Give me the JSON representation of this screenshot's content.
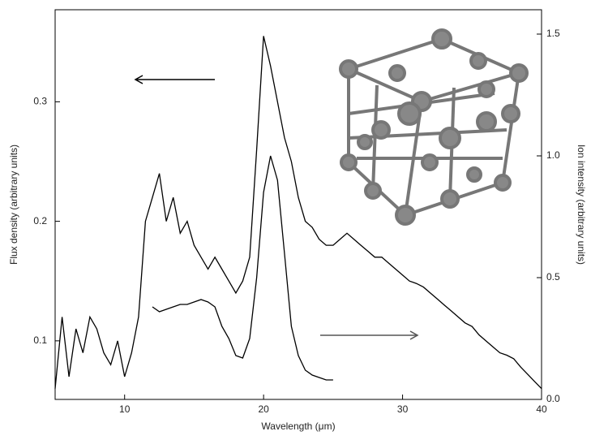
{
  "chart_data": {
    "type": "line",
    "xlabel": "Wavelength (μm)",
    "ylabel": "Flux density (arbitrary units)",
    "y2label": "Ion intensity (arbitrary units)",
    "xlim": [
      5,
      40
    ],
    "xticks": [
      10,
      20,
      30,
      40
    ],
    "ylim": [
      0.051,
      0.377
    ],
    "yticks": [
      0.1,
      0.2,
      0.3
    ],
    "y2lim": [
      0,
      1.6
    ],
    "y2ticks": [
      {
        "value": 0,
        "label": "0.0"
      },
      0.5,
      {
        "value": 1,
        "label": "1.0"
      },
      1.5
    ],
    "series": [
      {
        "color": "#000000",
        "x": [
          5,
          5.5,
          6,
          6.5,
          7,
          7.5,
          8,
          8.5,
          9,
          9.5,
          10,
          10.5,
          11,
          11.5,
          12,
          12.5,
          13,
          13.5,
          14,
          14.5,
          15,
          15.5,
          16,
          16.5,
          17,
          17.5,
          18,
          18.5,
          19,
          19.5,
          20,
          20.5,
          21,
          21.5,
          22,
          22.5,
          23,
          23.5,
          24,
          24.5,
          25,
          25.5,
          26,
          26.5,
          27,
          27.5,
          28,
          28.5,
          29,
          29.5,
          30,
          30.5,
          31,
          31.5,
          32,
          32.5,
          33,
          33.5,
          34,
          34.5,
          35,
          35.5,
          36,
          36.5,
          37,
          37.5,
          38,
          38.5,
          39,
          39.5,
          40
        ],
        "values": [
          0.06,
          0.12,
          0.07,
          0.11,
          0.09,
          0.12,
          0.11,
          0.09,
          0.08,
          0.1,
          0.07,
          0.09,
          0.12,
          0.2,
          0.22,
          0.24,
          0.2,
          0.22,
          0.19,
          0.2,
          0.18,
          0.17,
          0.16,
          0.17,
          0.16,
          0.15,
          0.14,
          0.15,
          0.17,
          0.26,
          0.355,
          0.33,
          0.3,
          0.27,
          0.25,
          0.22,
          0.2,
          0.195,
          0.185,
          0.18,
          0.18,
          0.185,
          0.19,
          0.185,
          0.18,
          0.175,
          0.17,
          0.17,
          0.165,
          0.16,
          0.155,
          0.15,
          0.148,
          0.145,
          0.14,
          0.135,
          0.13,
          0.125,
          0.12,
          0.115,
          0.112,
          0.105,
          0.1,
          0.095,
          0.09,
          0.088,
          0.085,
          0.078,
          0.072,
          0.066,
          0.06
        ]
      },
      {
        "color": "#000000",
        "axis": "y2",
        "x": [
          12,
          12.5,
          13,
          13.5,
          14,
          14.5,
          15,
          15.5,
          16,
          16.5,
          17,
          17.5,
          18,
          18.5,
          19,
          19.5,
          20,
          20.5,
          21,
          21.5,
          22,
          22.5,
          23,
          23.5,
          24,
          24.5,
          25
        ],
        "values": [
          0.38,
          0.36,
          0.37,
          0.38,
          0.39,
          0.39,
          0.4,
          0.41,
          0.4,
          0.38,
          0.3,
          0.25,
          0.18,
          0.17,
          0.25,
          0.5,
          0.85,
          1.0,
          0.9,
          0.6,
          0.3,
          0.18,
          0.12,
          0.1,
          0.09,
          0.08,
          0.08
        ]
      }
    ]
  }
}
